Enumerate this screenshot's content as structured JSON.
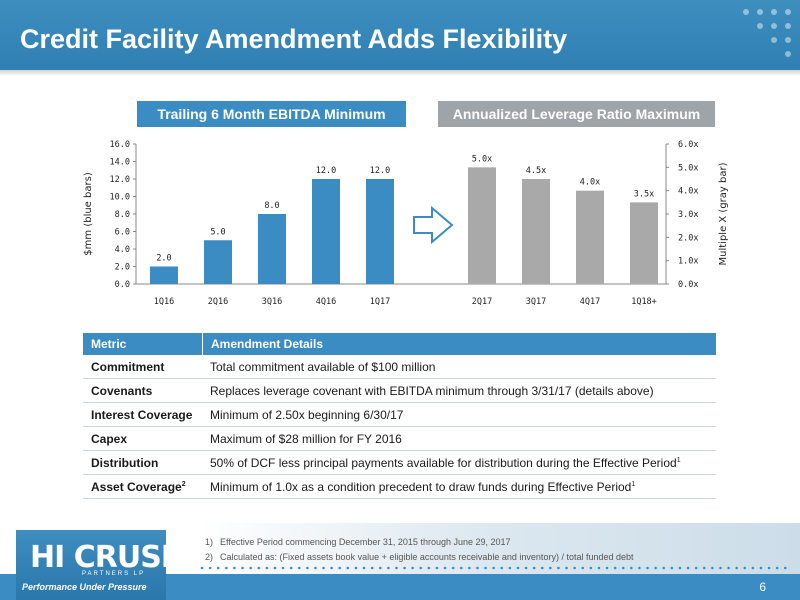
{
  "title": "Credit Facility Amendment Adds Flexibility",
  "sections": {
    "left_label": "Trailing 6 Month EBITDA Minimum",
    "right_label": "Annualized Leverage Ratio Maximum"
  },
  "chart_data": [
    {
      "type": "bar",
      "categories": [
        "1Q16",
        "2Q16",
        "3Q16",
        "4Q16",
        "1Q17"
      ],
      "values": [
        2.0,
        5.0,
        8.0,
        12.0,
        12.0
      ],
      "data_labels": [
        "2.0",
        "5.0",
        "8.0",
        "12.0",
        "12.0"
      ],
      "ylabel": "$mm (blue bars)",
      "ylim": [
        0,
        16
      ],
      "yticks": [
        "0.0",
        "2.0",
        "4.0",
        "6.0",
        "8.0",
        "10.0",
        "12.0",
        "14.0",
        "16.0"
      ],
      "color": "#3a8cc3"
    },
    {
      "type": "bar",
      "categories": [
        "2Q17",
        "3Q17",
        "4Q17",
        "1Q18+"
      ],
      "values": [
        5.0,
        4.5,
        4.0,
        3.5
      ],
      "data_labels": [
        "5.0x",
        "4.5x",
        "4.0x",
        "3.5x"
      ],
      "ylabel": "Multiple X (gray bar)",
      "ylim": [
        0,
        6
      ],
      "yticks": [
        "0.0x",
        "1.0x",
        "2.0x",
        "3.0x",
        "4.0x",
        "5.0x",
        "6.0x"
      ],
      "color": "#a9a9a9"
    }
  ],
  "table": {
    "headers": [
      "Metric",
      "Amendment Details"
    ],
    "rows": [
      {
        "metric": "Commitment",
        "metric_sup": "",
        "detail": "Total commitment available of $100 million",
        "detail_sup": ""
      },
      {
        "metric": "Covenants",
        "metric_sup": "",
        "detail": "Replaces leverage covenant with EBITDA minimum through 3/31/17 (details above)",
        "detail_sup": ""
      },
      {
        "metric": "Interest Coverage",
        "metric_sup": "",
        "detail": "Minimum of 2.50x beginning 6/30/17",
        "detail_sup": ""
      },
      {
        "metric": "Capex",
        "metric_sup": "",
        "detail": "Maximum of $28 million for FY 2016",
        "detail_sup": ""
      },
      {
        "metric": "Distribution",
        "metric_sup": "",
        "detail": "50% of DCF less principal payments available for distribution during the Effective Period",
        "detail_sup": "1"
      },
      {
        "metric": "Asset Coverage",
        "metric_sup": "2",
        "detail": "Minimum of 1.0x as a condition precedent to draw funds during Effective Period",
        "detail_sup": "1"
      }
    ]
  },
  "footnotes": [
    {
      "num": "1)",
      "text": "Effective Period commencing December 31, 2015 through June 29, 2017"
    },
    {
      "num": "2)",
      "text": "Calculated as: (Fixed assets book value + eligible accounts receivable and inventory) / total funded debt"
    }
  ],
  "logo": {
    "word": "HI CRUSH",
    "sub": "PARTNERS LP",
    "tagline": "Performance Under Pressure"
  },
  "page_number": "6"
}
